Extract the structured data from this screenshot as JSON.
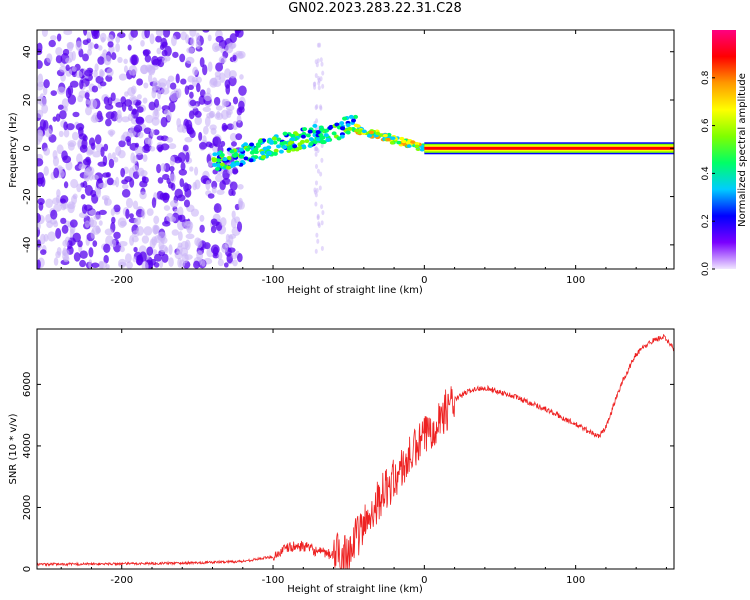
{
  "title": "GN02.2023.283.22.31.C28",
  "colors": {
    "line": "#ee2222",
    "axis": "#000000",
    "scatter_dark": "#5500ee",
    "scatter_light": "#c9b4f7"
  },
  "chart_data": [
    {
      "type": "heatmap",
      "xlabel": "Height of straight line (km)",
      "ylabel": "Frequency (Hz)",
      "xlim": [
        -256,
        165
      ],
      "ylim": [
        -50,
        49
      ],
      "xticks": [
        -200,
        -100,
        0,
        100
      ],
      "xtick_labels": [
        "-200",
        "-100",
        "0",
        "100"
      ],
      "yticks": [
        -40,
        -20,
        0,
        20,
        40
      ],
      "ytick_labels": [
        "-40",
        "-20",
        "0",
        "20",
        "40"
      ],
      "colorbar": {
        "label": "Normalized spectral amplitude",
        "range": [
          0,
          1
        ],
        "ticks": [
          0.0,
          0.2,
          0.4,
          0.6,
          0.8
        ],
        "tick_labels": [
          "0.0",
          "0.2",
          "0.4",
          "0.6",
          "0.8"
        ],
        "stops": [
          "#f0e6ff",
          "#7a00ff",
          "#0000ff",
          "#00ccff",
          "#00ff66",
          "#80ff00",
          "#ffff00",
          "#ff9900",
          "#ff0000",
          "#ff0080"
        ]
      },
      "regions": [
        {
          "name": "noise",
          "x_range": [
            -256,
            -120
          ],
          "freq_range": [
            -49,
            49
          ],
          "amplitude": 0.05
        },
        {
          "name": "rising-track",
          "x_range": [
            -140,
            -45
          ],
          "freq_start": -6,
          "freq_end": 10,
          "amplitude": 0.35
        },
        {
          "name": "descending-track",
          "x_range": [
            -45,
            0
          ],
          "freq_start": 8,
          "freq_end": 0,
          "amplitude": 0.5
        },
        {
          "name": "flat-band",
          "x_range": [
            0,
            165
          ],
          "freq": 0,
          "amplitude": 0.85
        }
      ]
    },
    {
      "type": "line",
      "xlabel": "Height of straight line (km)",
      "ylabel": "SNR (10 * v/v)",
      "xlim": [
        -256,
        165
      ],
      "ylim": [
        0,
        7800
      ],
      "xticks": [
        -200,
        -100,
        0,
        100
      ],
      "xtick_labels": [
        "-200",
        "-100",
        "0",
        "100"
      ],
      "yticks": [
        0,
        2000,
        4000,
        6000
      ],
      "ytick_labels": [
        "0",
        "2000",
        "4000",
        "6000"
      ],
      "series": [
        {
          "name": "SNR",
          "x": [
            -256,
            -200,
            -150,
            -120,
            -100,
            -90,
            -80,
            -70,
            -60,
            -50,
            -40,
            -30,
            -20,
            -10,
            0,
            10,
            20,
            30,
            40,
            60,
            80,
            100,
            110,
            115,
            120,
            130,
            140,
            150,
            158,
            165
          ],
          "y": [
            150,
            170,
            200,
            250,
            400,
            700,
            750,
            550,
            450,
            600,
            1400,
            2300,
            2900,
            3600,
            4300,
            4900,
            5500,
            5800,
            5900,
            5600,
            5200,
            4700,
            4450,
            4300,
            4600,
            6000,
            7000,
            7400,
            7550,
            7150
          ]
        }
      ]
    }
  ]
}
